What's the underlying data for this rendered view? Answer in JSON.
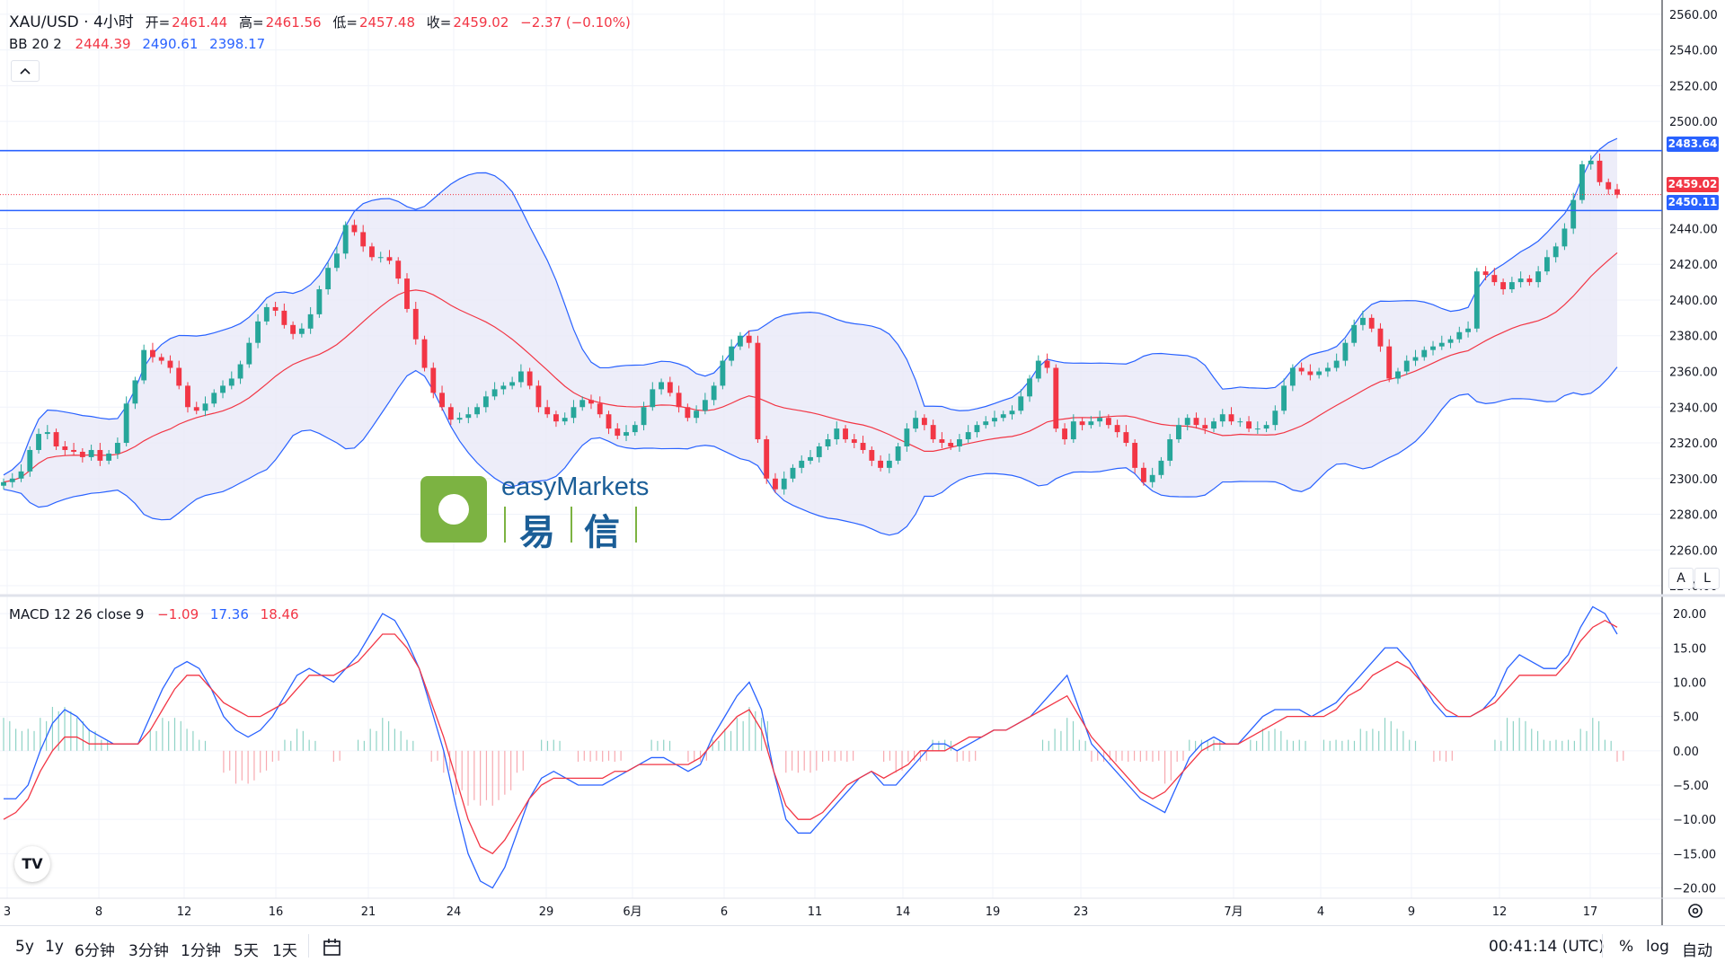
{
  "header": {
    "symbol": "XAU/USD · 4小时",
    "open_label": "开=",
    "open_value": "2461.44",
    "high_label": "高=",
    "high_value": "2461.56",
    "low_label": "低=",
    "low_value": "2457.48",
    "close_label": "收=",
    "close_value": "2459.02",
    "change": "−2.37 (−0.10%)",
    "bb_label": "BB 20 2",
    "bb_basis": "2444.39",
    "bb_upper": "2490.61",
    "bb_lower": "2398.17",
    "collapse_icon": "chevron-up-icon"
  },
  "macd_header": {
    "label": "MACD 12 26 close 9",
    "hist": "−1.09",
    "macd": "17.36",
    "signal": "18.46"
  },
  "logo": {
    "brand_en": "easyMarkets",
    "brand_cn_1": "易",
    "brand_cn_2": "信",
    "logo_icon": "easymarkets-logo-icon"
  },
  "price_badges": [
    {
      "id": "line1",
      "text": "2483.64",
      "color": "#2962ff"
    },
    {
      "id": "last",
      "text": "2459.02",
      "color": "#f23645"
    },
    {
      "id": "line2",
      "text": "2450.11",
      "color": "#2962ff"
    }
  ],
  "price_axis_ticks": [
    "2560.00",
    "2540.00",
    "2520.00",
    "2500.00",
    "2440.00",
    "2420.00",
    "2400.00",
    "2380.00",
    "2360.00",
    "2340.00",
    "2320.00",
    "2300.00",
    "2280.00",
    "2260.00",
    "2240.00"
  ],
  "macd_axis_ticks": [
    "20.00",
    "15.00",
    "10.00",
    "5.00",
    "0.00",
    "−5.00",
    "−10.00",
    "−15.00",
    "−20.00"
  ],
  "time_axis_labels": [
    "3",
    "8",
    "12",
    "16",
    "21",
    "24",
    "29",
    "6月",
    "6",
    "11",
    "14",
    "19",
    "23",
    "7月",
    "4",
    "9",
    "12",
    "17"
  ],
  "axis_buttons": {
    "a": "A",
    "l": "L"
  },
  "bottom_bar": {
    "timeframes": [
      "5y",
      "1y",
      "6分钟",
      "3分钟",
      "1分钟",
      "5天",
      "1天"
    ],
    "compare_icon": "date-range-icon",
    "clock": "00:41:14 (UTC)",
    "percent": "%",
    "log": "log",
    "auto": "自动",
    "settings_icon": "gear-icon",
    "tv_logo": "TV"
  },
  "colors": {
    "up": "#26a69a",
    "down": "#f23645",
    "bb": "#2962ff",
    "bb_fill": "#e8e8f7",
    "basis": "#f23645",
    "macd": "#2962ff",
    "signal": "#f23645",
    "logo_green": "#7cb342"
  },
  "chart_data": [
    {
      "type": "candlestick",
      "title": "XAU/USD · 4小时",
      "indicator": "BB 20 2",
      "horizontal_lines": [
        2483.64,
        2450.11
      ],
      "last_price": 2459.02,
      "ylim": [
        2235,
        2568
      ],
      "series": [
        {
          "name": "close_path",
          "values": [
            2298,
            2300,
            2304,
            2316,
            2325,
            2326,
            2318,
            2316,
            2315,
            2312,
            2316,
            2310,
            2314,
            2320,
            2342,
            2355,
            2372,
            2368,
            2366,
            2362,
            2352,
            2340,
            2338,
            2342,
            2348,
            2352,
            2356,
            2364,
            2376,
            2388,
            2396,
            2394,
            2386,
            2381,
            2384,
            2392,
            2406,
            2418,
            2426,
            2442,
            2438,
            2430,
            2424,
            2424,
            2422,
            2412,
            2395,
            2378,
            2362,
            2348,
            2340,
            2333,
            2334,
            2336,
            2340,
            2346,
            2350,
            2352,
            2354,
            2360,
            2352,
            2340,
            2336,
            2332,
            2334,
            2340,
            2344,
            2342,
            2336,
            2328,
            2324,
            2326,
            2330,
            2340,
            2350,
            2354,
            2348,
            2340,
            2334,
            2338,
            2344,
            2352,
            2366,
            2374,
            2380,
            2376,
            2322,
            2300,
            2294,
            2300,
            2306,
            2310,
            2312,
            2318,
            2322,
            2328,
            2322,
            2320,
            2316,
            2310,
            2306,
            2310,
            2318,
            2328,
            2334,
            2330,
            2322,
            2320,
            2318,
            2322,
            2326,
            2330,
            2332,
            2334,
            2336,
            2338,
            2346,
            2356,
            2366,
            2362,
            2328,
            2322,
            2332,
            2330,
            2332,
            2334,
            2330,
            2326,
            2320,
            2306,
            2298,
            2302,
            2310,
            2322,
            2330,
            2334,
            2330,
            2328,
            2332,
            2336,
            2332,
            2332,
            2328,
            2328,
            2330,
            2338,
            2352,
            2362,
            2360,
            2358,
            2360,
            2362,
            2366,
            2376,
            2386,
            2390,
            2384,
            2374,
            2356,
            2360,
            2366,
            2368,
            2372,
            2374,
            2376,
            2378,
            2382,
            2384,
            2416,
            2414,
            2410,
            2406,
            2410,
            2412,
            2410,
            2416,
            2424,
            2430,
            2440,
            2456,
            2476,
            2478,
            2466,
            2462,
            2459
          ]
        }
      ]
    },
    {
      "type": "line",
      "title": "MACD 12 26 close 9",
      "ylim": [
        -21.5,
        22.5
      ],
      "series": [
        {
          "name": "MACD",
          "values": [
            -7,
            -7,
            -5,
            0,
            4,
            6,
            5,
            3,
            2,
            1,
            1,
            1,
            5,
            9,
            12,
            13,
            12,
            9,
            5,
            3,
            2,
            3,
            5,
            8,
            11,
            12,
            11,
            10,
            12,
            14,
            17,
            20,
            19,
            16,
            12,
            6,
            0,
            -8,
            -15,
            -19,
            -20,
            -17,
            -12,
            -7,
            -4,
            -3,
            -4,
            -5,
            -5,
            -5,
            -4,
            -3,
            -2,
            -1,
            -1,
            -2,
            -3,
            -2,
            2,
            5,
            8,
            10,
            6,
            -3,
            -10,
            -12,
            -12,
            -10,
            -8,
            -6,
            -4,
            -3,
            -5,
            -5,
            -3,
            -1,
            1,
            1,
            0,
            1,
            2,
            3,
            3,
            4,
            5,
            7,
            9,
            11,
            6,
            1,
            -1,
            -3,
            -5,
            -7,
            -8,
            -9,
            -5,
            -1,
            1,
            2,
            1,
            1,
            3,
            5,
            6,
            6,
            6,
            5,
            6,
            7,
            9,
            11,
            13,
            15,
            15,
            13,
            10,
            7,
            5,
            5,
            5,
            6,
            8,
            12,
            14,
            13,
            12,
            12,
            14,
            18,
            21,
            20,
            17
          ]
        },
        {
          "name": "Signal",
          "values": [
            -10,
            -9,
            -7,
            -3,
            0,
            2,
            2,
            1,
            1,
            1,
            1,
            1,
            3,
            6,
            9,
            11,
            11,
            9,
            7,
            6,
            5,
            5,
            6,
            7,
            9,
            11,
            11,
            11,
            12,
            13,
            15,
            17,
            17,
            15,
            12,
            7,
            2,
            -4,
            -10,
            -14,
            -15,
            -13,
            -10,
            -7,
            -5,
            -4,
            -4,
            -4,
            -4,
            -4,
            -3,
            -3,
            -2,
            -2,
            -2,
            -2,
            -2,
            -1,
            1,
            3,
            5,
            6,
            3,
            -3,
            -8,
            -10,
            -10,
            -9,
            -7,
            -5,
            -4,
            -3,
            -4,
            -3,
            -2,
            0,
            0,
            0,
            1,
            2,
            2,
            3,
            3,
            4,
            5,
            6,
            7,
            8,
            5,
            2,
            0,
            -2,
            -4,
            -6,
            -7,
            -6,
            -4,
            -2,
            0,
            1,
            1,
            1,
            2,
            3,
            4,
            5,
            5,
            5,
            5,
            6,
            8,
            9,
            11,
            12,
            13,
            12,
            10,
            8,
            6,
            5,
            5,
            6,
            7,
            9,
            11,
            11,
            11,
            11,
            13,
            16,
            18,
            19,
            18
          ]
        }
      ]
    }
  ]
}
